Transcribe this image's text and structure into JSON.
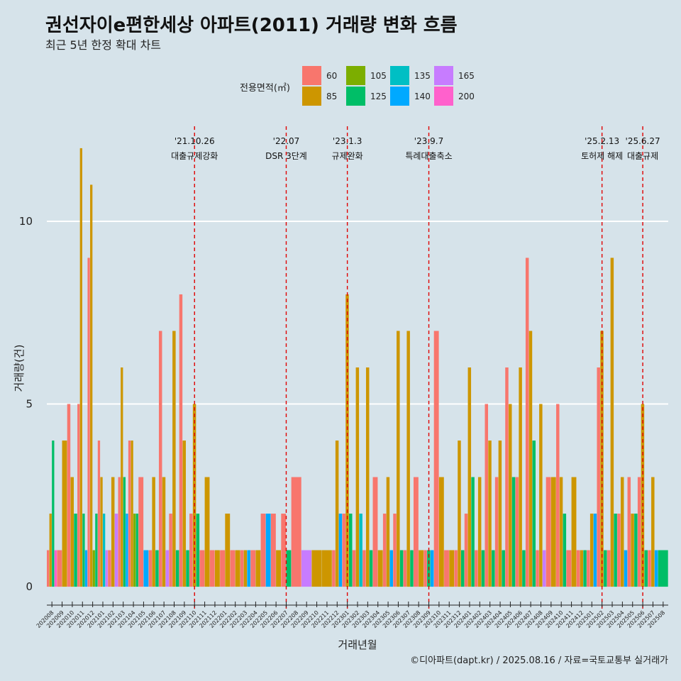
{
  "chart_data": {
    "type": "bar",
    "title": "권선자이e편한세상 아파트(2011) 거래량 변화 흐름",
    "subtitle": "최근 5년 한정 확대 차트",
    "xlabel": "거래년월",
    "ylabel": "거래량(건)",
    "ylim": [
      -0.6,
      12.6
    ],
    "yticks": [
      0,
      5,
      10
    ],
    "legend_title": "전용면적(㎡)",
    "caption": "©디아파트(dapt.kr) / 2025.08.16 / 자료=국토교통부 실거래가",
    "series": [
      {
        "name": "60",
        "color": "#f8766d"
      },
      {
        "name": "85",
        "color": "#cd9600"
      },
      {
        "name": "105",
        "color": "#7cae00"
      },
      {
        "name": "125",
        "color": "#00be67"
      },
      {
        "name": "135",
        "color": "#00bfc4"
      },
      {
        "name": "140",
        "color": "#00a9ff"
      },
      {
        "name": "165",
        "color": "#c77cff"
      },
      {
        "name": "200",
        "color": "#ff61cc"
      }
    ],
    "categories": [
      "202008",
      "202009",
      "202010",
      "202011",
      "202012",
      "202101",
      "202102",
      "202103",
      "202104",
      "202105",
      "202106",
      "202107",
      "202108",
      "202109",
      "202110",
      "202111",
      "202112",
      "202201",
      "202202",
      "202203",
      "202204",
      "202205",
      "202206",
      "202207",
      "202208",
      "202209",
      "202210",
      "202211",
      "202212",
      "202301",
      "202302",
      "202303",
      "202304",
      "202305",
      "202306",
      "202307",
      "202308",
      "202309",
      "202310",
      "202311",
      "202312",
      "202401",
      "202402",
      "202403",
      "202404",
      "202405",
      "202406",
      "202407",
      "202408",
      "202409",
      "202410",
      "202411",
      "202412",
      "202501",
      "202502",
      "202503",
      "202504",
      "202505",
      "202506",
      "202507",
      "202508"
    ],
    "data": [
      {
        "60": 1,
        "85": 2,
        "125": 4,
        "200": 1
      },
      {
        "60": 1,
        "85": 4
      },
      {
        "60": 5,
        "85": 3,
        "125": 2
      },
      {
        "60": 5,
        "85": 12,
        "125": 2,
        "140": 1
      },
      {
        "60": 9,
        "85": 11,
        "105": 1,
        "125": 2
      },
      {
        "60": 4,
        "85": 3,
        "135": 2,
        "165": 1
      },
      {
        "60": 1,
        "85": 3,
        "165": 2
      },
      {
        "60": 3,
        "85": 6,
        "125": 3,
        "140": 2
      },
      {
        "60": 4,
        "85": 4,
        "105": 2,
        "125": 2
      },
      {
        "60": 3,
        "140": 1
      },
      {
        "60": 1,
        "85": 3,
        "125": 1
      },
      {
        "60": 7,
        "85": 3,
        "165": 1
      },
      {
        "60": 2,
        "85": 7,
        "125": 1
      },
      {
        "60": 8,
        "85": 4,
        "125": 1
      },
      {
        "60": 2,
        "85": 5,
        "125": 2
      },
      {
        "60": 1,
        "85": 3
      },
      {
        "60": 1,
        "85": 1
      },
      {
        "60": 1,
        "85": 2
      },
      {
        "60": 1,
        "85": 1
      },
      {
        "60": 1,
        "85": 1,
        "140": 1
      },
      {
        "60": 1,
        "85": 1
      },
      {
        "60": 2,
        "140": 2
      },
      {
        "60": 2,
        "85": 1
      },
      {
        "60": 2,
        "125": 1
      },
      {
        "60": 3
      },
      {
        "165": 1
      },
      {
        "85": 1
      },
      {
        "85": 1
      },
      {
        "60": 1,
        "85": 4,
        "140": 2
      },
      {
        "60": 2,
        "85": 8,
        "125": 2
      },
      {
        "60": 1,
        "85": 6,
        "135": 2
      },
      {
        "60": 1,
        "85": 6,
        "125": 1
      },
      {
        "60": 3,
        "85": 1
      },
      {
        "60": 2,
        "85": 3,
        "140": 1
      },
      {
        "60": 2,
        "85": 7,
        "125": 1
      },
      {
        "60": 1,
        "85": 7,
        "125": 1
      },
      {
        "60": 3,
        "85": 1
      },
      {
        "60": 1,
        "125": 1,
        "140": 1
      },
      {
        "60": 7,
        "85": 3
      },
      {
        "60": 1,
        "85": 1
      },
      {
        "60": 1,
        "85": 4,
        "125": 1
      },
      {
        "60": 2,
        "85": 6,
        "125": 3
      },
      {
        "60": 1,
        "85": 3,
        "125": 1
      },
      {
        "60": 5,
        "85": 4,
        "125": 1
      },
      {
        "60": 3,
        "85": 4,
        "125": 1
      },
      {
        "60": 6,
        "85": 5,
        "125": 3
      },
      {
        "60": 3,
        "85": 6,
        "125": 1
      },
      {
        "60": 9,
        "85": 7,
        "125": 4
      },
      {
        "60": 1,
        "85": 5,
        "165": 1
      },
      {
        "60": 3,
        "85": 3
      },
      {
        "60": 5,
        "85": 3,
        "125": 2
      },
      {
        "60": 1,
        "85": 3
      },
      {
        "60": 1,
        "85": 1,
        "125": 1
      },
      {
        "60": 1,
        "85": 2,
        "140": 2
      },
      {
        "60": 6,
        "85": 7,
        "125": 1
      },
      {
        "60": 1,
        "85": 9,
        "125": 2
      },
      {
        "60": 2,
        "85": 3,
        "140": 1
      },
      {
        "60": 3,
        "85": 2,
        "125": 2
      },
      {
        "60": 3,
        "85": 5,
        "125": 1
      },
      {
        "60": 1,
        "85": 3,
        "140": 1
      },
      {
        "125": 1
      }
    ],
    "events": [
      {
        "date": "'21.10.26",
        "label": "대출규제강화",
        "month": "202110"
      },
      {
        "date": "'22.07",
        "label": "DSR 3단계",
        "month": "202207"
      },
      {
        "date": "'23.1.3",
        "label": "규제완화",
        "month": "202301"
      },
      {
        "date": "'23.9.7",
        "label": "특례대출축소",
        "month": "202309"
      },
      {
        "date": "'25.2.13",
        "label": "토허제 해제",
        "month": "202502"
      },
      {
        "date": "'25.6.27",
        "label": "대출규제",
        "month": "202506"
      }
    ]
  }
}
